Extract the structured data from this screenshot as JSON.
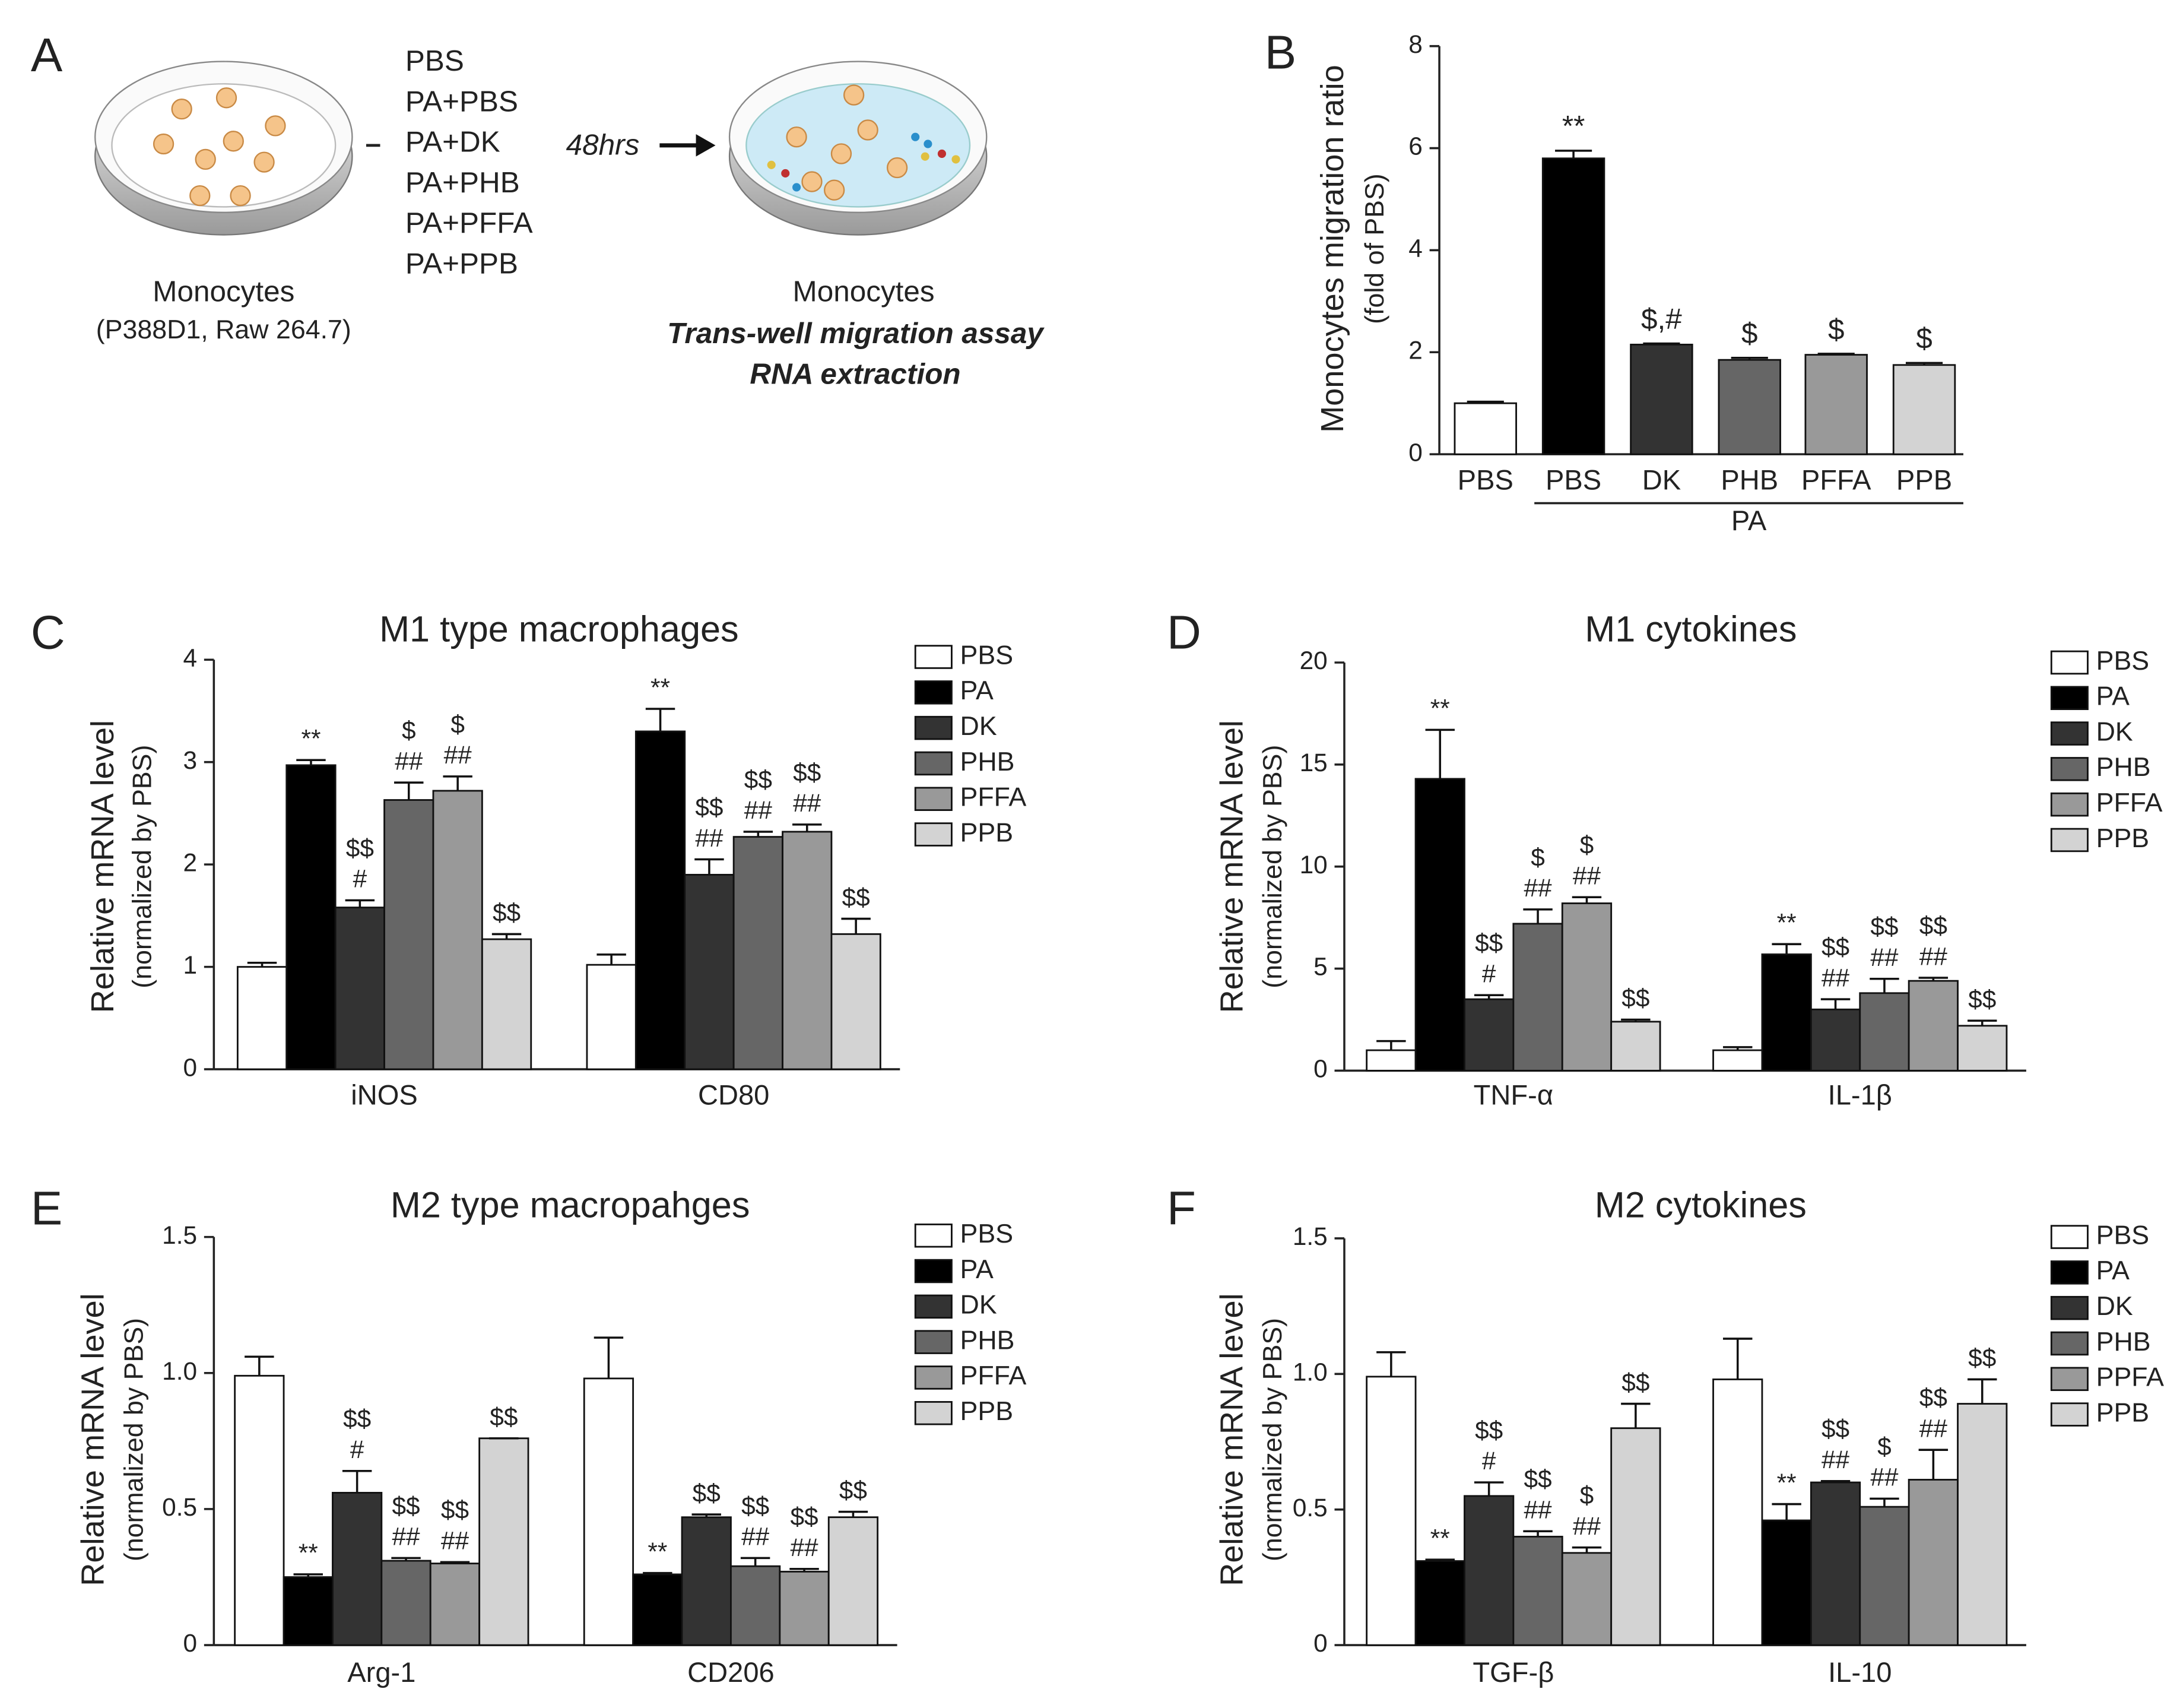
{
  "schematic": {
    "panel": "A",
    "left_label": "Monocytes",
    "left_sublabel": "(P388D1, Raw 264.7)",
    "treatments": [
      "PBS",
      "PA+PBS",
      "PA+DK",
      "PA+PHB",
      "PA+PFFA",
      "PA+PPB"
    ],
    "time": "48hrs",
    "right_label": "Monocytes",
    "assays": [
      "Trans-well migration assay",
      "RNA extraction"
    ]
  },
  "chart_data": [
    {
      "type": "bar",
      "panel": "B",
      "ylabel": [
        "Monocytes migration ratio",
        "(fold of PBS)"
      ],
      "categories": [
        "PBS",
        "PBS",
        "DK",
        "PHB",
        "PFFA",
        "PPB"
      ],
      "group_label": "PA",
      "values": [
        1.0,
        5.8,
        2.15,
        1.85,
        1.95,
        1.75
      ],
      "errors": [
        0.03,
        0.15,
        0.02,
        0.04,
        0.02,
        0.04
      ],
      "annotations": [
        null,
        "**",
        "$,#",
        "$",
        "$",
        "$"
      ],
      "colors": [
        "#ffffff",
        "#000000",
        "#333333",
        "#666666",
        "#999999",
        "#d3d3d3"
      ],
      "ylim": [
        0,
        8
      ],
      "yticks": [
        0,
        2,
        4,
        6,
        8
      ]
    },
    {
      "type": "grouped_bar",
      "panel": "C",
      "title": "M1 type macrophages",
      "ylabel": [
        "Relative mRNA level",
        "(normalized by PBS)"
      ],
      "categories": [
        "iNOS",
        "CD80"
      ],
      "ylim": [
        0,
        4
      ],
      "yticks": [
        0,
        1,
        2,
        3,
        4
      ],
      "series": [
        {
          "name": "PBS",
          "color": "#ffffff",
          "values": [
            1.0,
            1.02
          ],
          "errors": [
            0.04,
            0.1
          ],
          "annotations": [
            null,
            null
          ]
        },
        {
          "name": "PA",
          "color": "#000000",
          "values": [
            2.97,
            3.3
          ],
          "errors": [
            0.05,
            0.22
          ],
          "annotations": [
            [
              "**"
            ],
            [
              "**"
            ]
          ]
        },
        {
          "name": "DK",
          "color": "#333333",
          "values": [
            1.58,
            1.9
          ],
          "errors": [
            0.07,
            0.15
          ],
          "annotations": [
            [
              "$$",
              "#"
            ],
            [
              "$$",
              "##"
            ]
          ]
        },
        {
          "name": "PHB",
          "color": "#666666",
          "values": [
            2.63,
            2.27
          ],
          "errors": [
            0.17,
            0.05
          ],
          "annotations": [
            [
              "$",
              "##"
            ],
            [
              "$$",
              "##"
            ]
          ]
        },
        {
          "name": "PFFA",
          "color": "#999999",
          "values": [
            2.72,
            2.32
          ],
          "errors": [
            0.14,
            0.07
          ],
          "annotations": [
            [
              "$",
              "##"
            ],
            [
              "$$",
              "##"
            ]
          ]
        },
        {
          "name": "PPB",
          "color": "#d3d3d3",
          "values": [
            1.27,
            1.32
          ],
          "errors": [
            0.05,
            0.15
          ],
          "annotations": [
            [
              "$$"
            ],
            [
              "$$"
            ]
          ]
        }
      ]
    },
    {
      "type": "grouped_bar",
      "panel": "D",
      "title": "M1 cytokines",
      "ylabel": [
        "Relative mRNA level",
        "(normalized by PBS)"
      ],
      "categories": [
        "TNF-α",
        "IL-1β"
      ],
      "ylim": [
        0,
        20
      ],
      "yticks": [
        0,
        5,
        10,
        15,
        20
      ],
      "series": [
        {
          "name": "PBS",
          "color": "#ffffff",
          "values": [
            1.0,
            1.0
          ],
          "errors": [
            0.45,
            0.15
          ],
          "annotations": [
            null,
            null
          ]
        },
        {
          "name": "PA",
          "color": "#000000",
          "values": [
            14.3,
            5.7
          ],
          "errors": [
            2.4,
            0.5
          ],
          "annotations": [
            [
              "**"
            ],
            [
              "**"
            ]
          ]
        },
        {
          "name": "DK",
          "color": "#333333",
          "values": [
            3.5,
            3.0
          ],
          "errors": [
            0.2,
            0.5
          ],
          "annotations": [
            [
              "$$",
              "#"
            ],
            [
              "$$",
              "##"
            ]
          ]
        },
        {
          "name": "PHB",
          "color": "#666666",
          "values": [
            7.2,
            3.8
          ],
          "errors": [
            0.7,
            0.7
          ],
          "annotations": [
            [
              "$",
              "##"
            ],
            [
              "$$",
              "##"
            ]
          ]
        },
        {
          "name": "PFFA",
          "color": "#999999",
          "values": [
            8.2,
            4.4
          ],
          "errors": [
            0.3,
            0.15
          ],
          "annotations": [
            [
              "$",
              "##"
            ],
            [
              "$$",
              "##"
            ]
          ]
        },
        {
          "name": "PPB",
          "color": "#d3d3d3",
          "values": [
            2.4,
            2.2
          ],
          "errors": [
            0.1,
            0.25
          ],
          "annotations": [
            [
              "$$"
            ],
            [
              "$$"
            ]
          ]
        }
      ]
    },
    {
      "type": "grouped_bar",
      "panel": "E",
      "title": "M2 type macropahges",
      "ylabel": [
        "Relative mRNA level",
        "(normalized by PBS)"
      ],
      "categories": [
        "Arg-1",
        "CD206"
      ],
      "ylim": [
        0,
        1.5
      ],
      "yticks": [
        0,
        0.5,
        {
          "value": 1,
          "label": "1.0"
        },
        1.5
      ],
      "series": [
        {
          "name": "PBS",
          "color": "#ffffff",
          "values": [
            0.99,
            0.98
          ],
          "errors": [
            0.07,
            0.15
          ],
          "annotations": [
            null,
            null
          ]
        },
        {
          "name": "PA",
          "color": "#000000",
          "values": [
            0.25,
            0.26
          ],
          "errors": [
            0.01,
            0.005
          ],
          "annotations": [
            [
              "**"
            ],
            [
              "**"
            ]
          ]
        },
        {
          "name": "DK",
          "color": "#333333",
          "values": [
            0.56,
            0.47
          ],
          "errors": [
            0.08,
            0.01
          ],
          "annotations": [
            [
              "$$",
              "#"
            ],
            [
              "$$"
            ]
          ]
        },
        {
          "name": "PHB",
          "color": "#666666",
          "values": [
            0.31,
            0.29
          ],
          "errors": [
            0.01,
            0.03
          ],
          "annotations": [
            [
              "$$",
              "##"
            ],
            [
              "$$",
              "##"
            ]
          ]
        },
        {
          "name": "PFFA",
          "color": "#999999",
          "values": [
            0.3,
            0.27
          ],
          "errors": [
            0.005,
            0.01
          ],
          "annotations": [
            [
              "$$",
              "##"
            ],
            [
              "$$",
              "##"
            ]
          ]
        },
        {
          "name": "PPB",
          "color": "#d3d3d3",
          "values": [
            0.76,
            0.47
          ],
          "errors": [
            0,
            0.02
          ],
          "annotations": [
            [
              "$$"
            ],
            [
              "$$"
            ]
          ]
        }
      ]
    },
    {
      "type": "grouped_bar",
      "panel": "F",
      "title": "M2 cytokines",
      "ylabel": [
        "Relative mRNA level",
        "(normalized by PBS)"
      ],
      "categories": [
        "TGF-β",
        "IL-10"
      ],
      "ylim": [
        0,
        1.5
      ],
      "yticks": [
        0,
        0.5,
        {
          "value": 1,
          "label": "1.0"
        },
        1.5
      ],
      "series": [
        {
          "name": "PBS",
          "color": "#ffffff",
          "values": [
            0.99,
            0.98
          ],
          "errors": [
            0.09,
            0.15
          ],
          "annotations": [
            null,
            null
          ]
        },
        {
          "name": "PA",
          "color": "#000000",
          "values": [
            0.31,
            0.46
          ],
          "errors": [
            0.005,
            0.06
          ],
          "annotations": [
            [
              "**"
            ],
            [
              "**"
            ]
          ]
        },
        {
          "name": "DK",
          "color": "#333333",
          "values": [
            0.55,
            0.6
          ],
          "errors": [
            0.05,
            0.005
          ],
          "annotations": [
            [
              "$$",
              "#"
            ],
            [
              "$$",
              "##"
            ]
          ]
        },
        {
          "name": "PHB",
          "color": "#666666",
          "values": [
            0.4,
            0.51
          ],
          "errors": [
            0.02,
            0.03
          ],
          "annotations": [
            [
              "$$",
              "##"
            ],
            [
              "$",
              "##"
            ]
          ]
        },
        {
          "name": "PPFA",
          "color": "#999999",
          "values": [
            0.34,
            0.61
          ],
          "errors": [
            0.02,
            0.11
          ],
          "annotations": [
            [
              "$",
              "##"
            ],
            [
              "$$",
              "##"
            ]
          ]
        },
        {
          "name": "PPB",
          "color": "#d3d3d3",
          "values": [
            0.8,
            0.89
          ],
          "errors": [
            0.09,
            0.09
          ],
          "annotations": [
            [
              "$$"
            ],
            [
              "$$"
            ]
          ]
        }
      ]
    }
  ]
}
